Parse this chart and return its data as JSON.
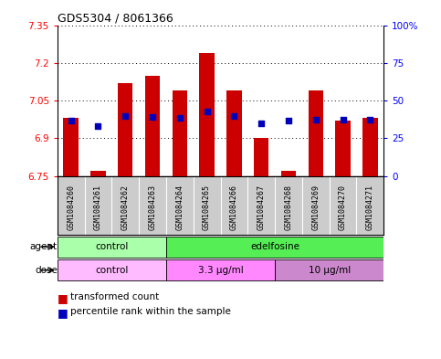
{
  "title": "GDS5304 / 8061366",
  "samples": [
    "GSM1084260",
    "GSM1084261",
    "GSM1084262",
    "GSM1084263",
    "GSM1084264",
    "GSM1084265",
    "GSM1084266",
    "GSM1084267",
    "GSM1084268",
    "GSM1084269",
    "GSM1084270",
    "GSM1084271"
  ],
  "bar_bottoms": [
    6.75,
    6.75,
    6.75,
    6.75,
    6.75,
    6.75,
    6.75,
    6.75,
    6.75,
    6.75,
    6.75,
    6.75
  ],
  "bar_tops": [
    6.98,
    6.77,
    7.12,
    7.15,
    7.09,
    7.24,
    7.09,
    6.9,
    6.77,
    7.09,
    6.97,
    6.98
  ],
  "blue_dots_y": [
    6.97,
    6.95,
    6.99,
    6.985,
    6.98,
    7.005,
    6.99,
    6.96,
    6.97,
    6.975,
    6.975,
    6.975
  ],
  "ylim_left": [
    6.75,
    7.35
  ],
  "ylim_right": [
    0,
    100
  ],
  "yticks_left": [
    6.75,
    6.9,
    7.05,
    7.2,
    7.35
  ],
  "ytick_labels_left": [
    "6.75",
    "6.9",
    "7.05",
    "7.2",
    "7.35"
  ],
  "yticks_right": [
    0,
    25,
    50,
    75,
    100
  ],
  "ytick_labels_right": [
    "0",
    "25",
    "50",
    "75",
    "100%"
  ],
  "bar_color": "#cc0000",
  "blue_color": "#0000bb",
  "agent_groups": [
    {
      "label": "control",
      "start": 0,
      "end": 3,
      "color": "#aaffaa"
    },
    {
      "label": "edelfosine",
      "start": 4,
      "end": 11,
      "color": "#55ee55"
    }
  ],
  "dose_groups": [
    {
      "label": "control",
      "start": 0,
      "end": 3,
      "color": "#ffbbff"
    },
    {
      "label": "3.3 μg/ml",
      "start": 4,
      "end": 7,
      "color": "#ff88ff"
    },
    {
      "label": "10 μg/ml",
      "start": 8,
      "end": 11,
      "color": "#cc88cc"
    }
  ],
  "legend_items": [
    {
      "label": "transformed count",
      "color": "#cc0000"
    },
    {
      "label": "percentile rank within the sample",
      "color": "#0000bb"
    }
  ],
  "agent_label": "agent",
  "dose_label": "dose",
  "bar_width": 0.55,
  "gray_bg": "#cccccc",
  "sample_label_fontsize": 6.0,
  "title_fontsize": 9
}
